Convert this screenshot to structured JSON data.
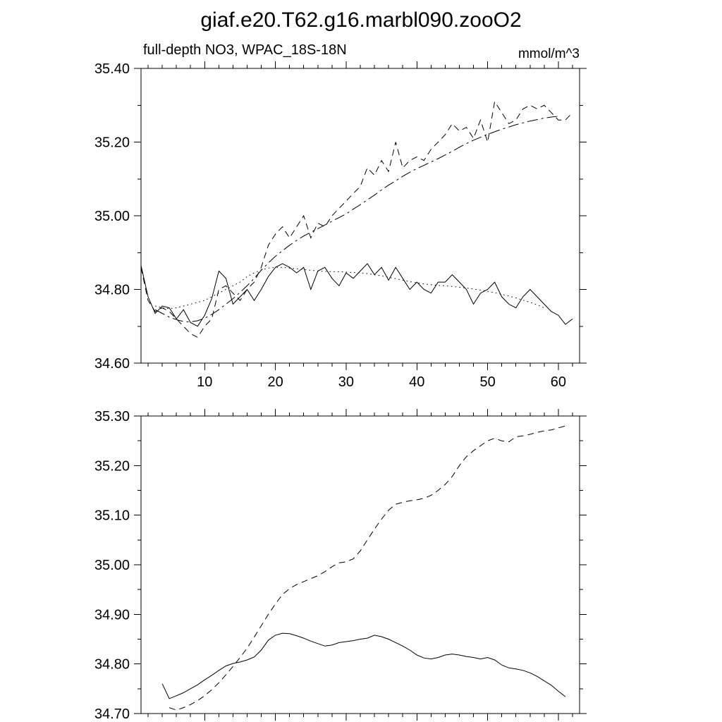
{
  "title": "giaf.e20.T62.g16.marbl090.zooO2",
  "chart_data": [
    {
      "type": "line",
      "panel": "top",
      "title": "full-depth NO3, WPAC_18S-18N",
      "units": "mmol/m^3",
      "xlim": [
        1,
        63
      ],
      "ylim": [
        34.6,
        35.4
      ],
      "yticks": [
        34.6,
        34.8,
        35.0,
        35.2,
        35.4
      ],
      "ytick_labels": [
        "34.60",
        "34.80",
        "35.00",
        "35.20",
        "35.40"
      ],
      "ytick_minor": [
        34.7,
        34.9,
        35.1,
        35.3
      ],
      "xticks": [
        10,
        20,
        30,
        40,
        50,
        60
      ],
      "xtick_labels": [
        "10",
        "20",
        "30",
        "40",
        "50",
        "60"
      ],
      "xtick_minor_step": 2,
      "x_axis_labeled": true,
      "grid": false,
      "legend": "none",
      "series": [
        {
          "name": "1-solid",
          "style": "solid",
          "x0": 1,
          "dx": 1,
          "y": [
            34.865,
            34.78,
            34.735,
            34.755,
            34.75,
            34.72,
            34.745,
            34.71,
            34.7,
            34.73,
            34.775,
            34.85,
            34.83,
            34.76,
            34.78,
            34.8,
            34.77,
            34.8,
            34.835,
            34.86,
            34.87,
            34.86,
            34.845,
            34.86,
            34.8,
            34.85,
            34.86,
            34.83,
            34.81,
            34.845,
            34.83,
            34.85,
            34.87,
            34.84,
            34.86,
            34.825,
            34.86,
            34.83,
            34.8,
            34.82,
            34.8,
            34.79,
            34.82,
            34.82,
            34.84,
            34.82,
            34.8,
            34.76,
            34.79,
            34.8,
            34.82,
            34.78,
            34.76,
            34.75,
            34.78,
            34.8,
            34.78,
            34.76,
            34.74,
            34.73,
            34.705,
            34.72
          ]
        },
        {
          "name": "2-dotted",
          "style": "dotted",
          "x0": 3,
          "dx": 1,
          "y": [
            34.755,
            34.75,
            34.748,
            34.75,
            34.755,
            34.76,
            34.765,
            34.77,
            34.78,
            34.79,
            34.8,
            34.81,
            34.82,
            34.835,
            34.845,
            34.853,
            34.858,
            34.86,
            34.86,
            34.858,
            34.856,
            34.854,
            34.852,
            34.85,
            34.849,
            34.848,
            34.848,
            34.847,
            34.846,
            34.845,
            34.843,
            34.84,
            34.837,
            34.833,
            34.829,
            34.825,
            34.821,
            34.818,
            34.815,
            34.813,
            34.811,
            34.81,
            34.808,
            34.806,
            34.804,
            34.801,
            34.798,
            34.795,
            34.791,
            34.787,
            34.782,
            34.777,
            34.771,
            34.765,
            34.758,
            34.75
          ]
        },
        {
          "name": "3-dashed",
          "style": "dashed",
          "x0": 1,
          "dx": 1,
          "y": [
            34.86,
            34.77,
            34.74,
            34.75,
            34.74,
            34.72,
            34.7,
            34.68,
            34.67,
            34.7,
            34.72,
            34.8,
            34.81,
            34.79,
            34.77,
            34.8,
            34.82,
            34.86,
            34.92,
            34.95,
            34.97,
            34.94,
            34.97,
            35.0,
            34.94,
            34.98,
            34.97,
            35.0,
            35.02,
            35.04,
            35.06,
            35.08,
            35.13,
            35.11,
            35.15,
            35.12,
            35.2,
            35.13,
            35.15,
            35.16,
            35.15,
            35.18,
            35.2,
            35.22,
            35.25,
            35.23,
            35.24,
            35.21,
            35.26,
            35.2,
            35.31,
            35.28,
            35.25,
            35.26,
            35.29,
            35.3,
            35.29,
            35.3,
            35.28,
            35.26,
            35.26,
            35.28
          ]
        },
        {
          "name": "4-dashdot",
          "style": "dashdot",
          "x0": 3,
          "dx": 1,
          "y": [
            34.745,
            34.735,
            34.725,
            34.718,
            34.713,
            34.712,
            34.715,
            34.722,
            34.732,
            34.745,
            34.76,
            34.775,
            34.792,
            34.81,
            34.83,
            34.852,
            34.872,
            34.89,
            34.905,
            34.92,
            34.933,
            34.945,
            34.955,
            34.965,
            34.975,
            34.985,
            34.995,
            35.005,
            35.018,
            35.03,
            35.043,
            35.056,
            35.07,
            35.083,
            35.095,
            35.107,
            35.118,
            35.128,
            35.137,
            35.146,
            35.155,
            35.165,
            35.175,
            35.186,
            35.196,
            35.205,
            35.213,
            35.221,
            35.228,
            35.235,
            35.241,
            35.247,
            35.252,
            35.257,
            35.261,
            35.265,
            35.268,
            35.27
          ]
        }
      ]
    },
    {
      "type": "line",
      "panel": "bottom",
      "title": "",
      "units": "",
      "xlim": [
        1,
        63
      ],
      "ylim": [
        34.7,
        35.3
      ],
      "yticks": [
        34.7,
        34.8,
        34.9,
        35.0,
        35.1,
        35.2,
        35.3
      ],
      "ytick_labels": [
        "34.70",
        "34.80",
        "34.90",
        "35.00",
        "35.10",
        "35.20",
        "35.30"
      ],
      "ytick_minor": [
        34.75,
        34.85,
        34.95,
        35.05,
        35.15,
        35.25
      ],
      "xticks": [
        10,
        20,
        30,
        40,
        50,
        60
      ],
      "xtick_labels": [],
      "xtick_minor_step": 2,
      "x_axis_labeled": false,
      "grid": false,
      "legend": "none",
      "series": [
        {
          "name": "1-solid",
          "style": "solid",
          "x0": 4,
          "dx": 1,
          "y": [
            34.76,
            34.73,
            34.736,
            34.742,
            34.75,
            34.758,
            34.768,
            34.777,
            34.787,
            34.796,
            34.801,
            34.804,
            34.808,
            34.814,
            34.828,
            34.848,
            34.858,
            34.862,
            34.861,
            34.857,
            34.852,
            34.846,
            34.841,
            34.836,
            34.838,
            34.843,
            34.845,
            34.847,
            34.85,
            34.852,
            34.858,
            34.855,
            34.85,
            34.843,
            34.836,
            34.828,
            34.818,
            34.812,
            34.81,
            34.813,
            34.818,
            34.82,
            34.818,
            34.815,
            34.813,
            34.81,
            34.813,
            34.808,
            34.798,
            34.792,
            34.79,
            34.787,
            34.782,
            34.775,
            34.766,
            34.757,
            34.745,
            34.734
          ]
        },
        {
          "name": "2-dashed",
          "style": "dashed",
          "x0": 5,
          "dx": 1,
          "y": [
            34.712,
            34.707,
            34.712,
            34.718,
            34.726,
            34.736,
            34.748,
            34.762,
            34.778,
            34.795,
            34.813,
            34.832,
            34.854,
            34.877,
            34.9,
            34.921,
            34.94,
            34.952,
            34.96,
            34.966,
            34.972,
            34.978,
            34.986,
            34.996,
            35.004,
            35.006,
            35.012,
            35.028,
            35.05,
            35.072,
            35.092,
            35.11,
            35.122,
            35.126,
            35.129,
            35.131,
            35.134,
            35.14,
            35.15,
            35.162,
            35.178,
            35.2,
            35.218,
            35.23,
            35.24,
            35.25,
            35.255,
            35.25,
            35.248,
            35.258,
            35.26,
            35.263,
            35.267,
            35.27,
            35.272,
            35.276,
            35.28
          ]
        }
      ]
    }
  ]
}
